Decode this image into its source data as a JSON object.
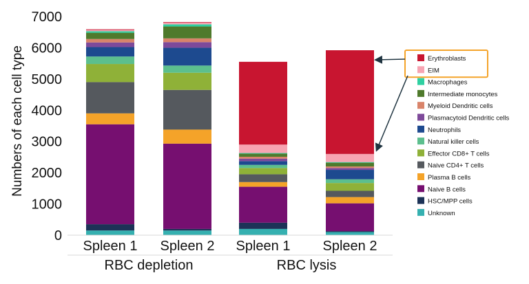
{
  "chart_data": {
    "type": "bar",
    "stacked": true,
    "ylabel": "Numbers of each cell type",
    "ylim": [
      0,
      7000
    ],
    "yticks": [
      "0",
      "1000",
      "2000",
      "3000",
      "4000",
      "5000",
      "6000",
      "7000"
    ],
    "categories": [
      "Spleen 1",
      "Spleen 2",
      "Spleen 1",
      "Spleen 2"
    ],
    "groups": [
      {
        "label": "RBC depletion",
        "categories": [
          0,
          1
        ]
      },
      {
        "label": "RBC lysis",
        "categories": [
          2,
          3
        ]
      }
    ],
    "legend_position": "right",
    "legend_highlight": [
      "Erythroblasts",
      "EIM"
    ],
    "series": [
      {
        "name": "Unknown",
        "color": "#35b0b0",
        "values": [
          150,
          150,
          200,
          100
        ]
      },
      {
        "name": "HSC/MPP cells",
        "color": "#1c3257",
        "values": [
          200,
          50,
          200,
          30
        ]
      },
      {
        "name": "Naive B cells",
        "color": "#760f70",
        "values": [
          3200,
          2730,
          1150,
          890
        ]
      },
      {
        "name": "Plasma B cells",
        "color": "#f4a329",
        "values": [
          350,
          450,
          150,
          200
        ]
      },
      {
        "name": "Naive CD4+ T cells",
        "color": "#55595e",
        "values": [
          1000,
          1270,
          250,
          200
        ]
      },
      {
        "name": "Effector CD8+ T cells",
        "color": "#8fb138",
        "values": [
          580,
          550,
          200,
          250
        ]
      },
      {
        "name": "Natural killer  cells",
        "color": "#5cbf8e",
        "values": [
          240,
          230,
          100,
          120
        ]
      },
      {
        "name": "Neutrophils",
        "color": "#1d4a8f",
        "values": [
          300,
          570,
          120,
          300
        ]
      },
      {
        "name": "Plasmacytoid Dendritic cells",
        "color": "#7e4a9a",
        "values": [
          150,
          180,
          80,
          60
        ]
      },
      {
        "name": "Myeloid Dendritic cells",
        "color": "#d9846a",
        "values": [
          110,
          120,
          60,
          50
        ]
      },
      {
        "name": "Intermediate monocytes",
        "color": "#4f7a2c",
        "values": [
          200,
          380,
          100,
          120
        ]
      },
      {
        "name": "Macrophages",
        "color": "#2fd0a1",
        "values": [
          50,
          70,
          20,
          20
        ]
      },
      {
        "name": "EIM",
        "color": "#f7a4b2",
        "values": [
          40,
          50,
          270,
          260
        ]
      },
      {
        "name": "Erythroblasts",
        "color": "#c81530",
        "values": [
          20,
          20,
          2650,
          3320
        ]
      }
    ]
  }
}
